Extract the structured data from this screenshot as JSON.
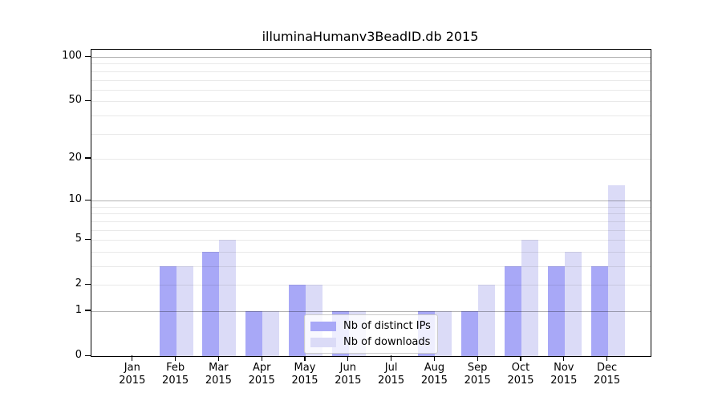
{
  "title": "illuminaHumanv3BeadID.db 2015",
  "colors": {
    "distinct_ips": "#A8A8F7",
    "downloads": "#DBDBF7",
    "grid_major": "#B0B0B0",
    "grid_minor": "#E8E8E8",
    "axis": "#000000"
  },
  "legend": {
    "items": [
      {
        "label": "Nb of distinct IPs",
        "series": "distinct_ips"
      },
      {
        "label": "Nb of downloads",
        "series": "downloads"
      }
    ]
  },
  "chart_data": {
    "type": "bar",
    "title": "illuminaHumanv3BeadID.db 2015",
    "x_tick_months": [
      "Jan",
      "Feb",
      "Mar",
      "Apr",
      "May",
      "Jun",
      "Jul",
      "Aug",
      "Sep",
      "Oct",
      "Nov",
      "Dec"
    ],
    "x_tick_year": "2015",
    "series": [
      {
        "name": "Nb of distinct IPs",
        "color_key": "distinct_ips",
        "values": [
          0,
          3,
          4,
          1,
          2,
          1,
          0,
          1,
          1,
          3,
          3,
          3
        ]
      },
      {
        "name": "Nb of downloads",
        "color_key": "downloads",
        "values": [
          0,
          3,
          5,
          1,
          2,
          1,
          0,
          1,
          2,
          5,
          4,
          13
        ]
      }
    ],
    "yscale": "log1p",
    "ylim": [
      0,
      112
    ],
    "y_tick_values": [
      0,
      1,
      2,
      5,
      10,
      20,
      50,
      100
    ],
    "y_major_gridlines": [
      1,
      10,
      100
    ],
    "y_minor_gridlines": [
      2,
      3,
      4,
      5,
      6,
      7,
      8,
      9,
      20,
      30,
      40,
      50,
      60,
      70,
      80,
      90
    ],
    "grid": "horizontal",
    "legend_position": "lower center",
    "xlabel": "",
    "ylabel": ""
  }
}
